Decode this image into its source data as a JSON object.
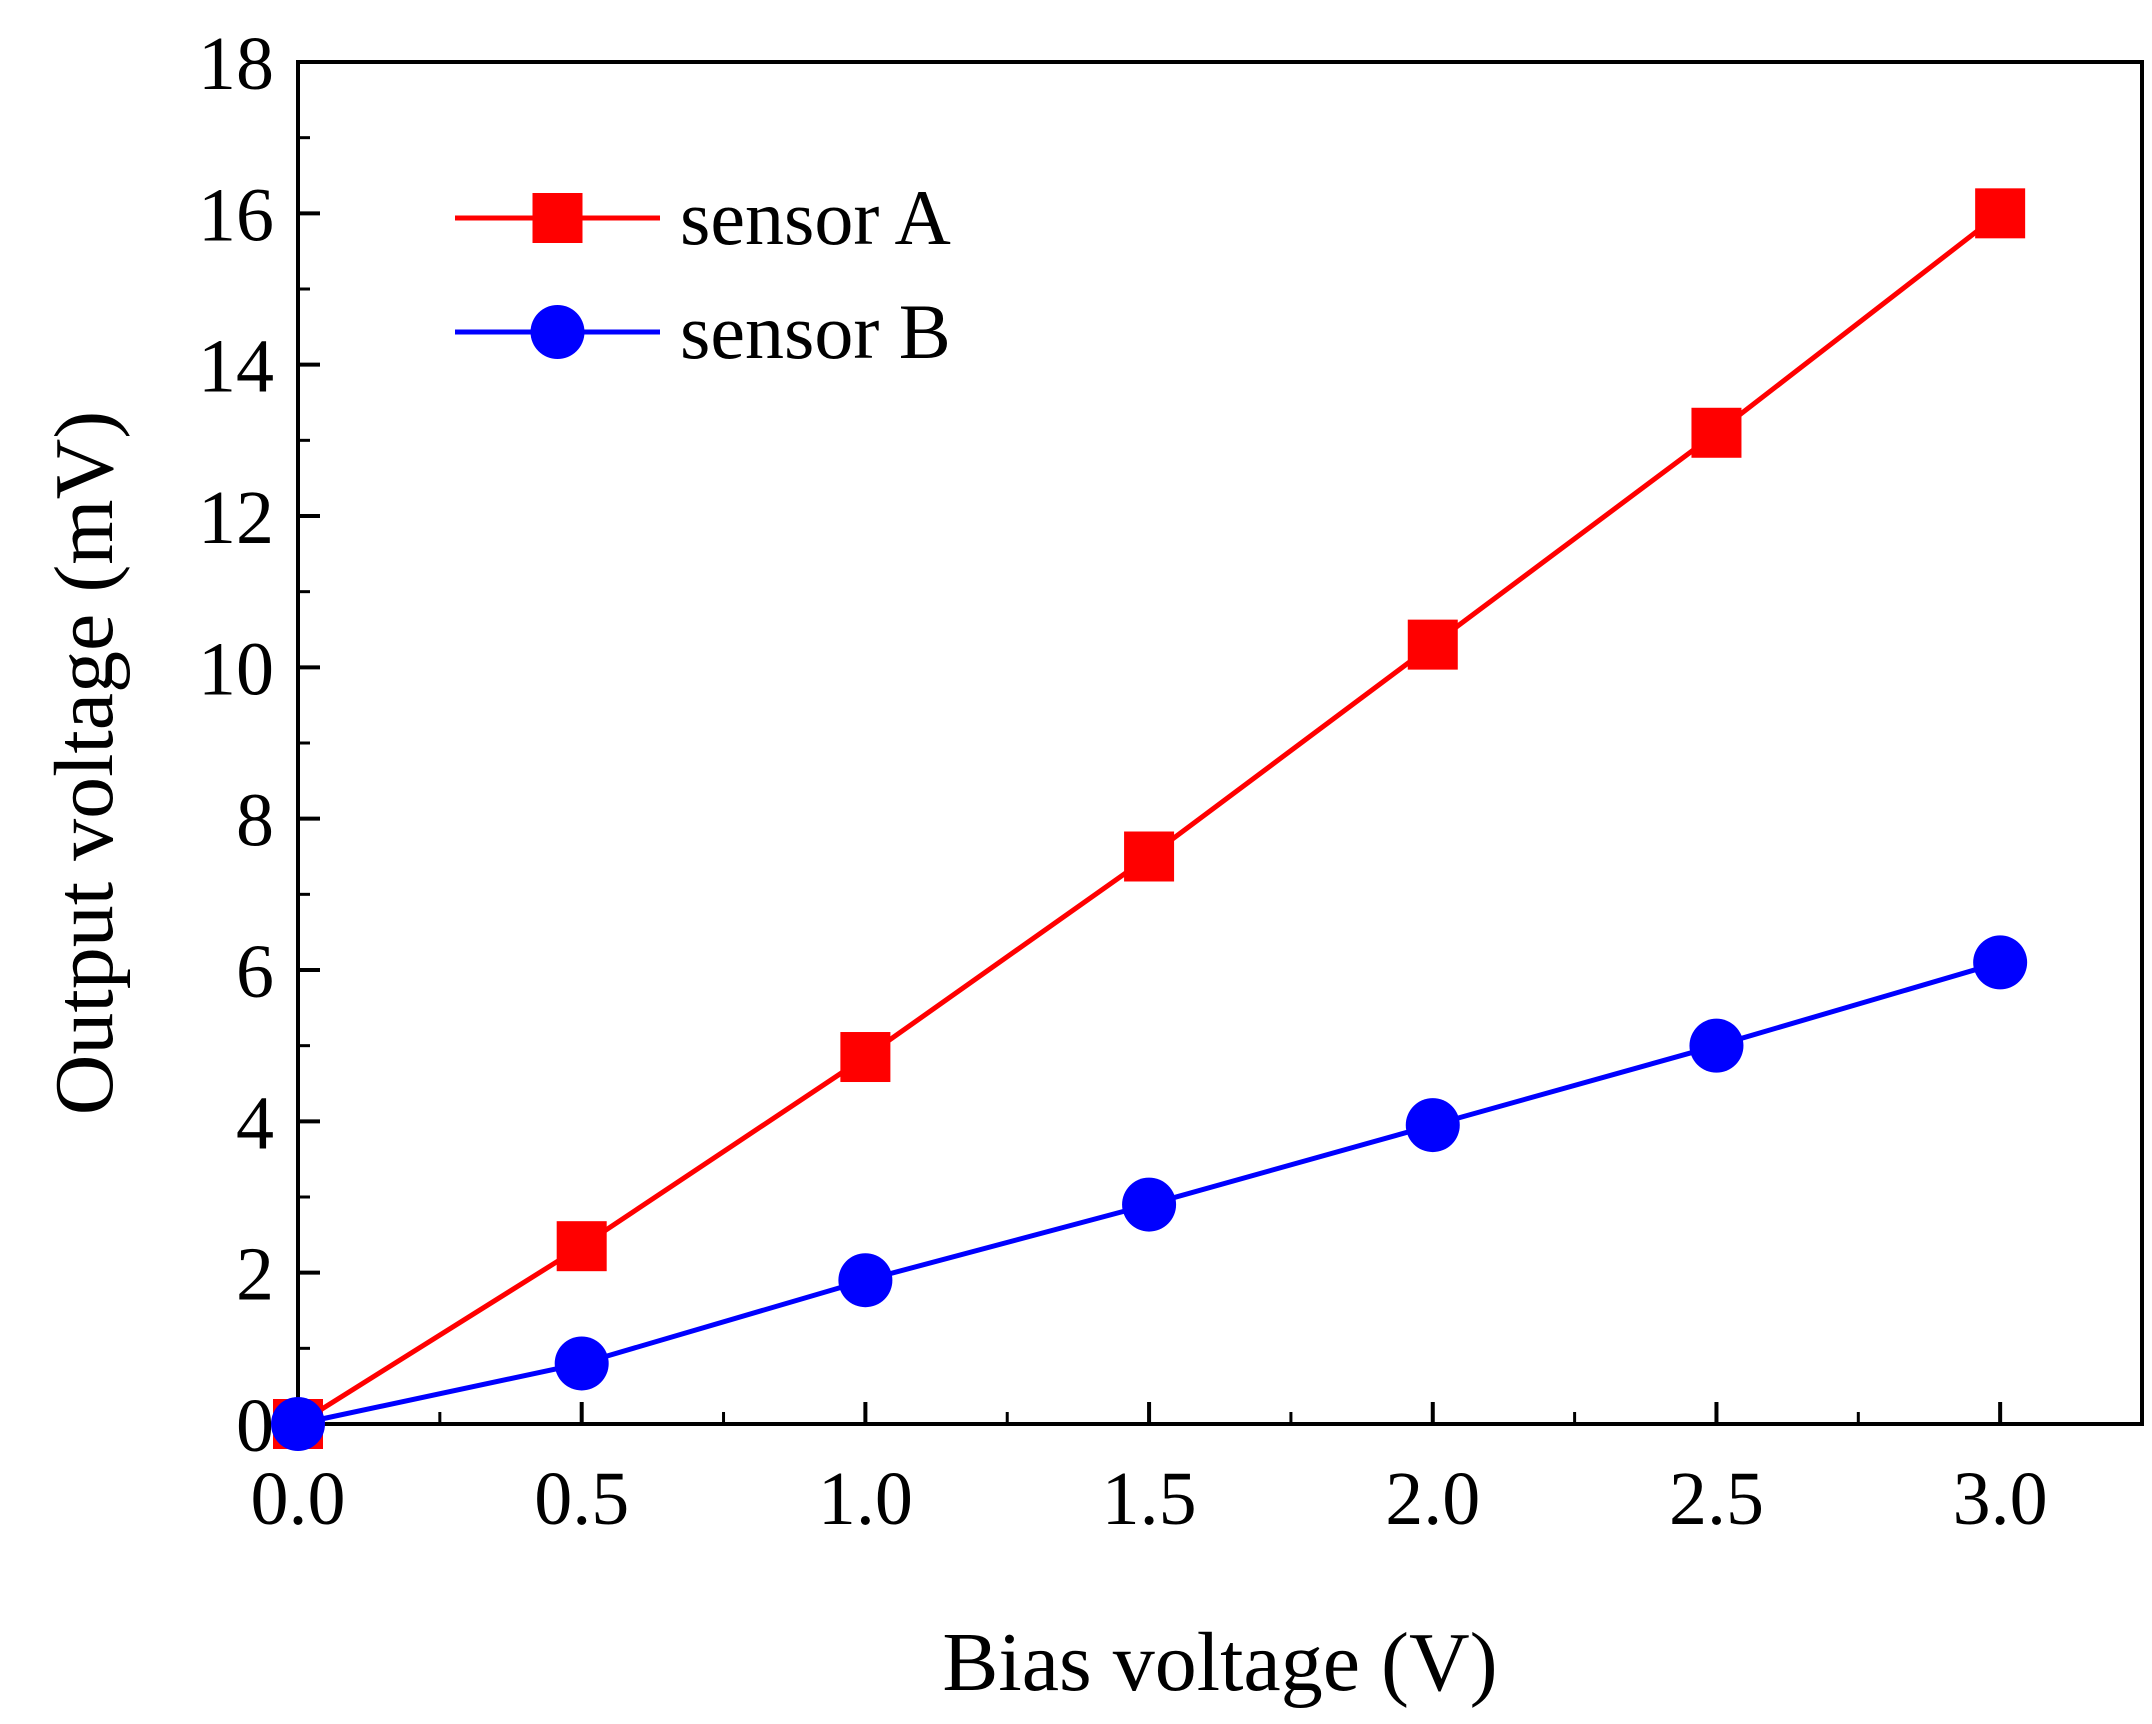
{
  "chart_data": {
    "type": "line",
    "title": "",
    "xlabel": "Bias voltage (V)",
    "ylabel": "Output voltage (mV)",
    "xlim": [
      0.0,
      3.25
    ],
    "ylim": [
      0,
      18
    ],
    "xticks": [
      0.0,
      0.5,
      1.0,
      1.5,
      2.0,
      2.5,
      3.0
    ],
    "xtick_labels": [
      "0.0",
      "0.5",
      "1.0",
      "1.5",
      "2.0",
      "2.5",
      "3.0"
    ],
    "yticks": [
      0,
      2,
      4,
      6,
      8,
      10,
      12,
      14,
      16,
      18
    ],
    "ytick_labels": [
      "0",
      "2",
      "4",
      "6",
      "8",
      "10",
      "12",
      "14",
      "16",
      "18"
    ],
    "grid": false,
    "legend_position": "top-left",
    "x": [
      0.0,
      0.5,
      1.0,
      1.5,
      2.0,
      2.5,
      3.0
    ],
    "series": [
      {
        "name": "sensor A",
        "marker": "square",
        "color": "#ff0000",
        "values": [
          0.0,
          2.35,
          4.85,
          7.5,
          10.3,
          13.1,
          16.0
        ]
      },
      {
        "name": "sensor B",
        "marker": "circle",
        "color": "#0000ff",
        "values": [
          0.0,
          0.8,
          1.9,
          2.9,
          3.95,
          5.0,
          6.1
        ]
      }
    ]
  }
}
